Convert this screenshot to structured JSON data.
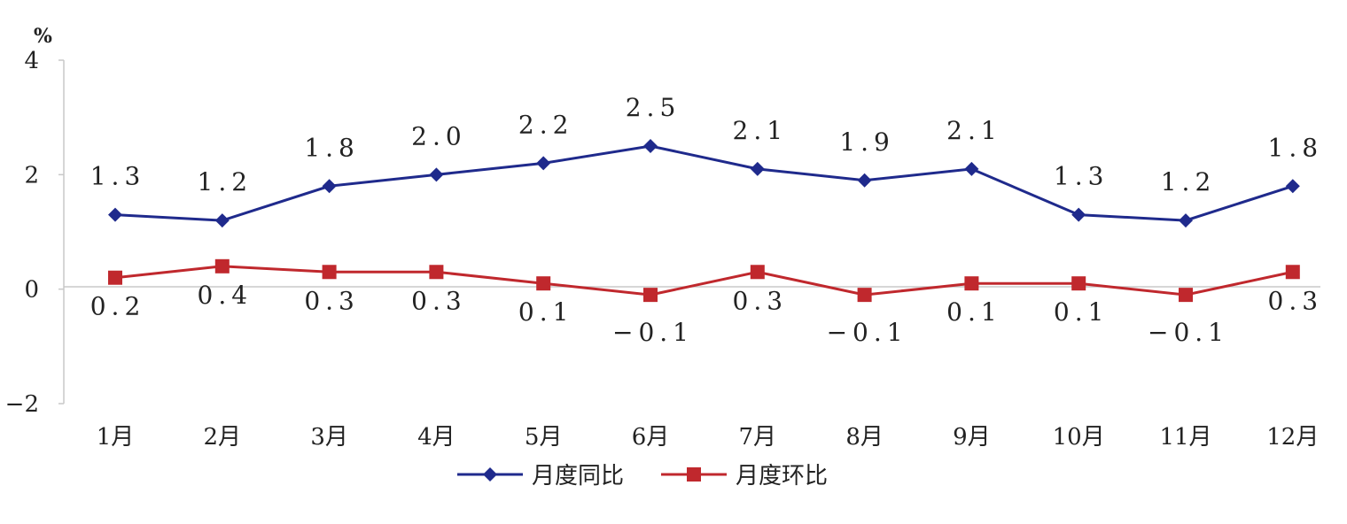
{
  "chart_data": {
    "type": "line",
    "y_unit": "%",
    "ylim": [
      -2,
      4
    ],
    "yticks": [
      "4",
      "2",
      "0",
      "−2"
    ],
    "categories": [
      "1月",
      "2月",
      "3月",
      "4月",
      "5月",
      "6月",
      "7月",
      "8月",
      "9月",
      "10月",
      "11月",
      "12月"
    ],
    "series": [
      {
        "name": "月度同比",
        "color": "#1f2a8c",
        "marker": "diamond",
        "values": [
          1.3,
          1.2,
          1.8,
          2.0,
          2.2,
          2.5,
          2.1,
          1.9,
          2.1,
          1.3,
          1.2,
          1.8
        ],
        "labels": [
          "1.3",
          "1.2",
          "1.8",
          "2.0",
          "2.2",
          "2.5",
          "2.1",
          "1.9",
          "2.1",
          "1.3",
          "1.2",
          "1.8"
        ]
      },
      {
        "name": "月度环比",
        "color": "#c0282d",
        "marker": "square",
        "values": [
          0.2,
          0.4,
          0.3,
          0.3,
          0.1,
          -0.1,
          0.3,
          -0.1,
          0.1,
          0.1,
          -0.1,
          0.3
        ],
        "labels": [
          "0.2",
          "0.4",
          "0.3",
          "0.3",
          "0.1",
          "−0.1",
          "0.3",
          "−0.1",
          "0.1",
          "0.1",
          "−0.1",
          "0.3"
        ]
      }
    ],
    "grid": false,
    "legend_position": "bottom-center"
  }
}
